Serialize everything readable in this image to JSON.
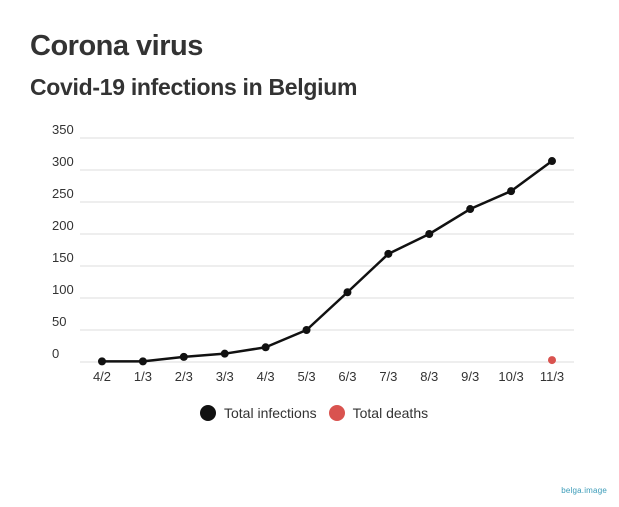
{
  "header": {
    "title": "Corona virus",
    "subtitle": "Covid-19 infections in Belgium"
  },
  "chart_data": {
    "type": "line",
    "title": "Corona virus",
    "subtitle": "Covid-19 infections in Belgium",
    "xlabel": "",
    "ylabel": "",
    "categories": [
      "4/2",
      "1/3",
      "2/3",
      "3/3",
      "4/3",
      "5/3",
      "6/3",
      "7/3",
      "8/3",
      "9/3",
      "10/3",
      "11/3"
    ],
    "ylim": [
      0,
      350
    ],
    "yticks": [
      "350",
      "300",
      "250",
      "200",
      "150",
      "100",
      "50",
      "0"
    ],
    "grid": true,
    "legend_position": "bottom",
    "series": [
      {
        "name": "Total infections",
        "color": "#111111",
        "line": true,
        "values": [
          1,
          1,
          8,
          13,
          23,
          50,
          109,
          169,
          200,
          239,
          267,
          314
        ]
      },
      {
        "name": "Total deaths",
        "color": "#d9534f",
        "line": false,
        "values": [
          null,
          null,
          null,
          null,
          null,
          null,
          null,
          null,
          null,
          null,
          null,
          3
        ]
      }
    ]
  },
  "watermark": "belga.image"
}
